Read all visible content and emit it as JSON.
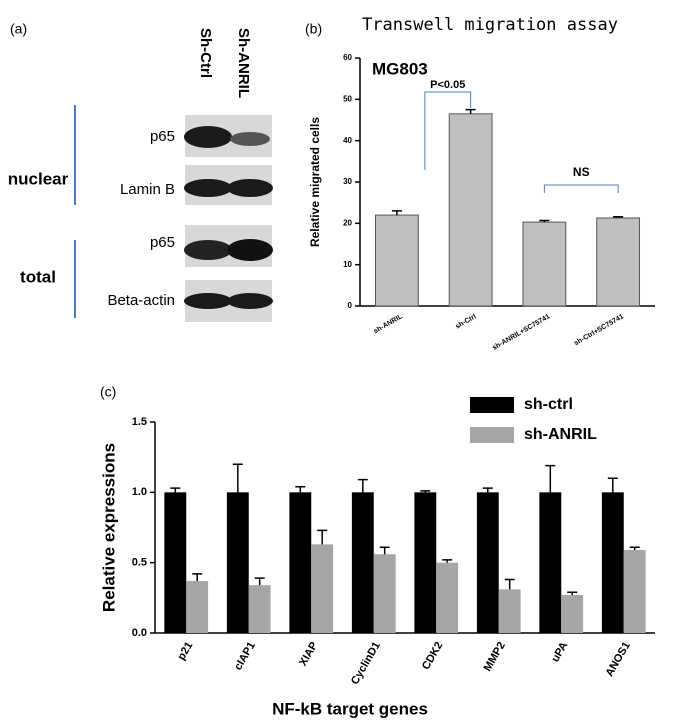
{
  "panel_labels": [
    "(a)",
    "(b)",
    "(c)"
  ],
  "blot": {
    "columns": [
      "Sh-Ctrl",
      "Sh-ANRIL"
    ],
    "rows": [
      "p65",
      "Lamin B",
      "p65",
      "Beta-actin"
    ],
    "groups": [
      "nuclear",
      "total"
    ]
  },
  "chart_data": [
    {
      "type": "bar",
      "title": "Transwell migration assay",
      "subtitle": "MG803",
      "y_label": "Relative migrated cells",
      "categories": [
        "sh-ANRIL",
        "sh-Ctrl",
        "sh-ANRIL+SC75741",
        "sh-Ctrl+SC75741"
      ],
      "values": [
        22,
        46.5,
        20.3,
        21.3
      ],
      "errors": [
        1,
        1,
        0.4,
        0.3
      ],
      "color": "#c0c0c0",
      "ylim": [
        0,
        60
      ],
      "yticks": [
        0,
        10,
        20,
        30,
        40,
        50,
        60
      ],
      "annotations": [
        "P<0.05",
        "NS"
      ]
    },
    {
      "type": "grouped_bar",
      "y_label": "Relative expressions",
      "x_label": "NF-kB target genes",
      "categories": [
        "p21",
        "cIAP1",
        "XIAP",
        "CyclinD1",
        "CDK2",
        "MMP2",
        "uPA",
        "ANOS1"
      ],
      "series": [
        {
          "name": "sh-ctrl",
          "color": "#000000",
          "values": [
            1.0,
            1.0,
            1.0,
            1.0,
            1.0,
            1.0,
            1.0,
            1.0
          ],
          "errors": [
            0.03,
            0.2,
            0.04,
            0.09,
            0.01,
            0.03,
            0.19,
            0.1
          ]
        },
        {
          "name": "sh-ANRIL",
          "color": "#a6a6a6",
          "values": [
            0.37,
            0.34,
            0.63,
            0.56,
            0.5,
            0.31,
            0.27,
            0.59
          ],
          "errors": [
            0.05,
            0.05,
            0.1,
            0.05,
            0.02,
            0.07,
            0.02,
            0.02
          ]
        }
      ],
      "ylim": [
        0,
        1.5
      ],
      "yticks": [
        {
          "value": 0,
          "label": "0.0"
        },
        0.5,
        {
          "value": 1,
          "label": "1.0"
        },
        1.5
      ],
      "legend": "top-right"
    }
  ]
}
